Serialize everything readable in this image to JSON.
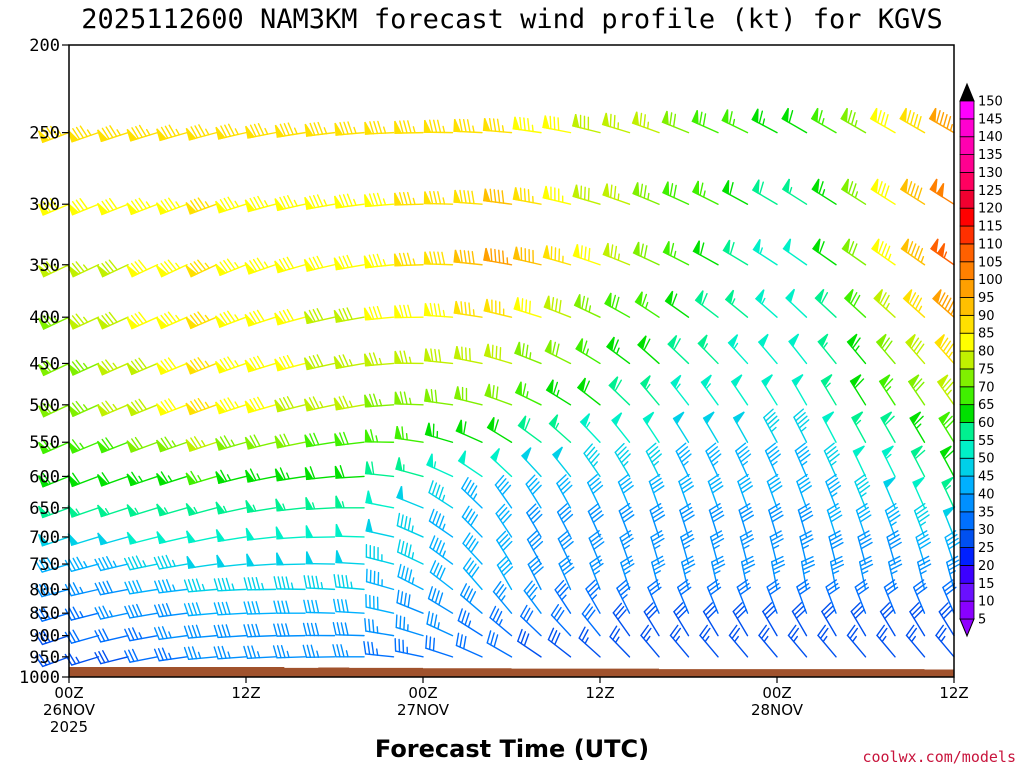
{
  "chart_data": {
    "type": "wind_barb_profile",
    "title": "2025112600 NAM3KM forecast wind profile (kt) for KGVS",
    "xlabel": "Forecast Time (UTC)",
    "credit": "coolwx.com/models",
    "ylim": [
      1000,
      200
    ],
    "y_ticks": [
      {
        "value": 200,
        "label": "200"
      },
      {
        "value": 250,
        "label": "250"
      },
      {
        "value": 300,
        "label": "300"
      },
      {
        "value": 350,
        "label": "350"
      },
      {
        "value": 400,
        "label": "400"
      },
      {
        "value": 450,
        "label": "450"
      },
      {
        "value": 500,
        "label": "500"
      },
      {
        "value": 550,
        "label": "550"
      },
      {
        "value": 600,
        "label": "600"
      },
      {
        "value": 650,
        "label": "650"
      },
      {
        "value": 700,
        "label": "700"
      },
      {
        "value": 750,
        "label": "750"
      },
      {
        "value": 800,
        "label": "800"
      },
      {
        "value": 850,
        "label": "850"
      },
      {
        "value": 900,
        "label": "900"
      },
      {
        "value": 950,
        "label": "950"
      },
      {
        "value": 1000,
        "label": "1000"
      }
    ],
    "x_range_hours": [
      0,
      60
    ],
    "x_ticks": [
      {
        "hour": 0,
        "lines": [
          "00Z",
          "26NOV",
          "2025"
        ]
      },
      {
        "hour": 12,
        "lines": [
          "12Z"
        ]
      },
      {
        "hour": 24,
        "lines": [
          "00Z",
          "27NOV"
        ]
      },
      {
        "hour": 36,
        "lines": [
          "12Z"
        ]
      },
      {
        "hour": 48,
        "lines": [
          "00Z",
          "28NOV"
        ]
      },
      {
        "hour": 60,
        "lines": [
          "12Z"
        ]
      }
    ],
    "levels": [
      250,
      300,
      350,
      400,
      450,
      500,
      550,
      600,
      650,
      700,
      750,
      800,
      850,
      900,
      950
    ],
    "times": [
      0,
      2,
      4,
      6,
      8,
      10,
      12,
      14,
      16,
      18,
      20,
      22,
      24,
      26,
      28,
      30,
      32,
      34,
      36,
      38,
      40,
      42,
      44,
      46,
      48,
      50,
      52,
      54,
      56,
      58,
      60
    ],
    "wind_grid": {
      "level_keys": [
        250,
        350,
        500,
        650,
        800,
        950
      ],
      "time_keys": [
        0,
        10,
        20,
        30,
        40,
        50,
        60
      ],
      "speed_kt": [
        [
          85,
          85,
          85,
          85,
          75,
          60,
          95
        ],
        [
          75,
          85,
          80,
          95,
          70,
          50,
          105
        ],
        [
          70,
          85,
          75,
          70,
          55,
          50,
          75
        ],
        [
          55,
          55,
          55,
          40,
          40,
          40,
          55
        ],
        [
          35,
          45,
          45,
          40,
          35,
          35,
          35
        ],
        [
          25,
          35,
          35,
          30,
          25,
          25,
          25
        ]
      ],
      "direction_deg": [
        [
          250,
          255,
          265,
          275,
          290,
          300,
          300
        ],
        [
          245,
          245,
          260,
          280,
          295,
          305,
          305
        ],
        [
          245,
          250,
          260,
          290,
          320,
          330,
          325
        ],
        [
          250,
          255,
          270,
          325,
          340,
          340,
          335
        ],
        [
          255,
          265,
          275,
          330,
          345,
          350,
          345
        ],
        [
          250,
          265,
          270,
          300,
          320,
          320,
          320
        ]
      ]
    },
    "surface_pressure_mb": [
      {
        "hour": 0,
        "value": 975
      },
      {
        "hour": 10,
        "value": 975
      },
      {
        "hour": 14.6,
        "value": 977
      },
      {
        "hour": 16.9,
        "value": 976
      },
      {
        "hour": 19,
        "value": 977
      },
      {
        "hour": 24,
        "value": 978
      },
      {
        "hour": 30,
        "value": 979
      },
      {
        "hour": 40,
        "value": 980
      },
      {
        "hour": 50,
        "value": 980
      },
      {
        "hour": 58,
        "value": 981
      },
      {
        "hour": 60,
        "value": 983
      }
    ],
    "colorbar": {
      "levels": [
        5,
        10,
        15,
        20,
        25,
        30,
        35,
        40,
        45,
        50,
        55,
        60,
        65,
        70,
        75,
        80,
        85,
        90,
        95,
        100,
        105,
        110,
        115,
        120,
        125,
        130,
        135,
        140,
        145,
        150
      ],
      "labels": [
        "5",
        "10",
        "15",
        "20",
        "25",
        "30",
        "35",
        "40",
        "45",
        "50",
        "55",
        "60",
        "65",
        "70",
        "75",
        "80",
        "85",
        "90",
        "95",
        "100",
        "105",
        "110",
        "115",
        "120",
        "125",
        "130",
        "135",
        "140",
        "145",
        "150"
      ],
      "colors": [
        "#8a00ff",
        "#6a10ff",
        "#3c00ff",
        "#0020ff",
        "#0050f0",
        "#0070ff",
        "#0090ff",
        "#00b0ff",
        "#00d0e8",
        "#00f0c8",
        "#00f090",
        "#00e000",
        "#40f000",
        "#80f000",
        "#c0f000",
        "#ffff00",
        "#ffe000",
        "#ffc000",
        "#ffa000",
        "#ff8000",
        "#ff6000",
        "#ff3000",
        "#ff0000",
        "#f00030",
        "#ff0060",
        "#ff0090",
        "#ff00b0",
        "#ff00d0",
        "#ff00ff"
      ],
      "under_color": "#9000ff",
      "over_color": "#000000"
    },
    "terrain_color": "#a0522d"
  }
}
